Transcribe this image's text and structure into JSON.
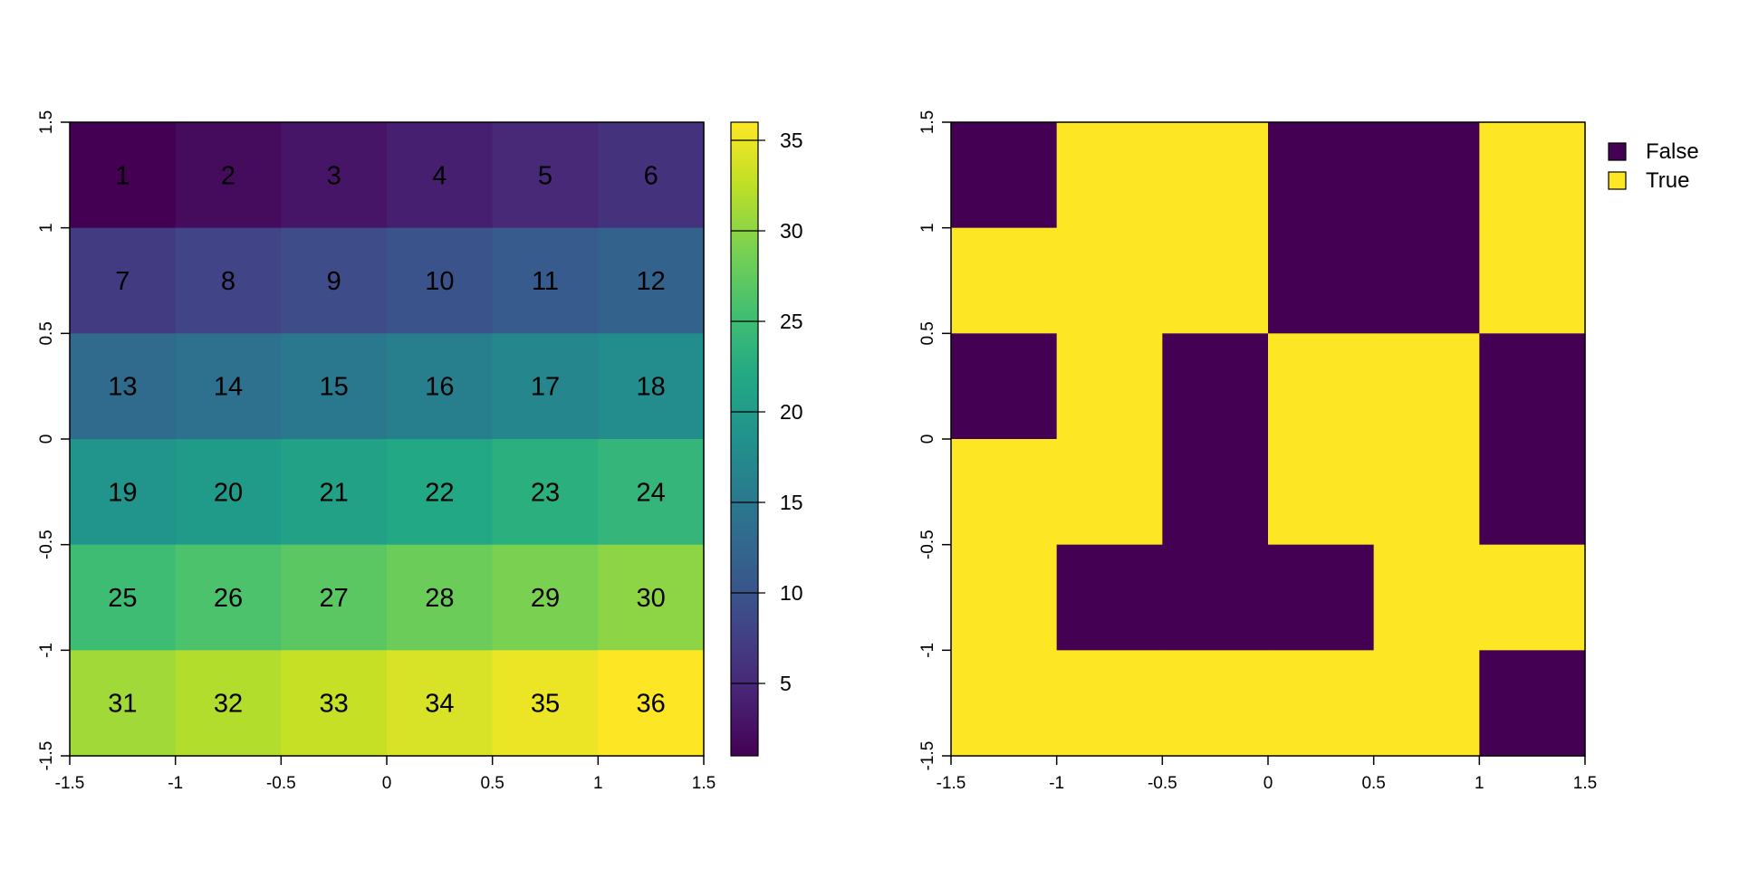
{
  "chart_data": [
    {
      "type": "heatmap",
      "title": "",
      "xlabel": "",
      "ylabel": "",
      "xlim": [
        -1.5,
        1.5
      ],
      "ylim": [
        -1.5,
        1.5
      ],
      "x_ticks": [
        "-1.5",
        "-1",
        "-0.5",
        "0",
        "0.5",
        "1",
        "1.5"
      ],
      "y_ticks": [
        "-1.5",
        "-1",
        "-0.5",
        "0",
        "0.5",
        "1",
        "1.5"
      ],
      "nrows": 6,
      "ncols": 6,
      "values": [
        [
          1,
          2,
          3,
          4,
          5,
          6
        ],
        [
          7,
          8,
          9,
          10,
          11,
          12
        ],
        [
          13,
          14,
          15,
          16,
          17,
          18
        ],
        [
          19,
          20,
          21,
          22,
          23,
          24
        ],
        [
          25,
          26,
          27,
          28,
          29,
          30
        ],
        [
          31,
          32,
          33,
          34,
          35,
          36
        ]
      ],
      "color_scale": {
        "palette": "viridis",
        "min": 1,
        "max": 36
      },
      "colorbar_ticks": [
        "5",
        "10",
        "15",
        "20",
        "25",
        "30",
        "35"
      ]
    },
    {
      "type": "heatmap",
      "title": "",
      "xlabel": "",
      "ylabel": "",
      "xlim": [
        -1.5,
        1.5
      ],
      "ylim": [
        -1.5,
        1.5
      ],
      "x_ticks": [
        "-1.5",
        "-1",
        "-0.5",
        "0",
        "0.5",
        "1",
        "1.5"
      ],
      "y_ticks": [
        "-1.5",
        "-1",
        "-0.5",
        "0",
        "0.5",
        "1",
        "1.5"
      ],
      "nrows": 6,
      "ncols": 6,
      "values": [
        [
          false,
          true,
          true,
          false,
          false,
          true
        ],
        [
          true,
          true,
          true,
          false,
          false,
          true
        ],
        [
          false,
          true,
          false,
          true,
          true,
          false
        ],
        [
          true,
          true,
          false,
          true,
          true,
          false
        ],
        [
          true,
          false,
          false,
          false,
          true,
          true
        ],
        [
          true,
          true,
          true,
          true,
          true,
          false
        ]
      ],
      "colors": {
        "False": "#440154",
        "True": "#fde725"
      },
      "legend": {
        "placement": "top-right",
        "entries": [
          {
            "label": "False",
            "color": "#440154"
          },
          {
            "label": "True",
            "color": "#fde725"
          }
        ]
      }
    }
  ]
}
